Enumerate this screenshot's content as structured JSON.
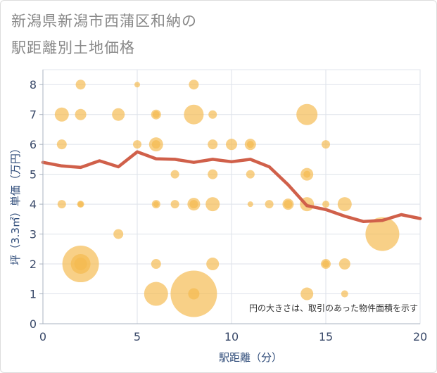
{
  "chart_data": {
    "type": "scatter",
    "title_line1": "新潟県新潟市西蒲区和納の",
    "title_line2": "駅距離別土地価格",
    "xlabel": "駅距離（分）",
    "ylabel": "坪（3.3㎡）単価（万円）",
    "note": "円の大きさは、取引のあった物件面積を示す",
    "xlim": [
      0,
      20
    ],
    "ylim": [
      0,
      8.5
    ],
    "xticks": [
      0,
      5,
      10,
      15,
      20
    ],
    "yticks": [
      0,
      1,
      2,
      3,
      4,
      5,
      6,
      7,
      8
    ],
    "grid": true,
    "bubble_color": "#f5b94e",
    "line_color": "#d0604a",
    "bubbles": [
      {
        "x": 2,
        "y": 8,
        "r": 7
      },
      {
        "x": 5,
        "y": 8,
        "r": 4
      },
      {
        "x": 8,
        "y": 8,
        "r": 7
      },
      {
        "x": 1,
        "y": 7,
        "r": 10
      },
      {
        "x": 2,
        "y": 7,
        "r": 8
      },
      {
        "x": 4,
        "y": 7,
        "r": 9
      },
      {
        "x": 6,
        "y": 7,
        "r": 7
      },
      {
        "x": 6,
        "y": 7,
        "r": 5
      },
      {
        "x": 8,
        "y": 7,
        "r": 14
      },
      {
        "x": 9,
        "y": 7,
        "r": 6
      },
      {
        "x": 14,
        "y": 7,
        "r": 15
      },
      {
        "x": 1,
        "y": 6,
        "r": 7
      },
      {
        "x": 5,
        "y": 6,
        "r": 6
      },
      {
        "x": 6,
        "y": 6,
        "r": 10
      },
      {
        "x": 6,
        "y": 6,
        "r": 6
      },
      {
        "x": 9,
        "y": 6,
        "r": 7
      },
      {
        "x": 10,
        "y": 6,
        "r": 8
      },
      {
        "x": 11,
        "y": 6,
        "r": 8
      },
      {
        "x": 11,
        "y": 6,
        "r": 5
      },
      {
        "x": 15,
        "y": 6,
        "r": 6
      },
      {
        "x": 7,
        "y": 5,
        "r": 6
      },
      {
        "x": 9,
        "y": 5,
        "r": 7
      },
      {
        "x": 11,
        "y": 5,
        "r": 6
      },
      {
        "x": 14,
        "y": 5,
        "r": 9
      },
      {
        "x": 14,
        "y": 5,
        "r": 5
      },
      {
        "x": 1,
        "y": 4,
        "r": 6
      },
      {
        "x": 2,
        "y": 4,
        "r": 5
      },
      {
        "x": 2,
        "y": 4,
        "r": 4
      },
      {
        "x": 6,
        "y": 4,
        "r": 6
      },
      {
        "x": 6,
        "y": 4,
        "r": 4
      },
      {
        "x": 7,
        "y": 4,
        "r": 6
      },
      {
        "x": 8,
        "y": 4,
        "r": 9
      },
      {
        "x": 8,
        "y": 4,
        "r": 6
      },
      {
        "x": 9,
        "y": 4,
        "r": 10
      },
      {
        "x": 11,
        "y": 4,
        "r": 4
      },
      {
        "x": 12,
        "y": 4,
        "r": 6
      },
      {
        "x": 13,
        "y": 4,
        "r": 8
      },
      {
        "x": 13,
        "y": 4,
        "r": 6
      },
      {
        "x": 14,
        "y": 4,
        "r": 10
      },
      {
        "x": 15,
        "y": 4,
        "r": 5
      },
      {
        "x": 16,
        "y": 4,
        "r": 10
      },
      {
        "x": 4,
        "y": 3,
        "r": 7
      },
      {
        "x": 18,
        "y": 3,
        "r": 24
      },
      {
        "x": 2,
        "y": 2,
        "r": 26
      },
      {
        "x": 2,
        "y": 2,
        "r": 14
      },
      {
        "x": 2,
        "y": 2,
        "r": 9
      },
      {
        "x": 6,
        "y": 2,
        "r": 7
      },
      {
        "x": 9,
        "y": 2,
        "r": 9
      },
      {
        "x": 15,
        "y": 2,
        "r": 7
      },
      {
        "x": 15,
        "y": 2,
        "r": 5
      },
      {
        "x": 16,
        "y": 2,
        "r": 8
      },
      {
        "x": 6,
        "y": 1,
        "r": 17
      },
      {
        "x": 8,
        "y": 1,
        "r": 33
      },
      {
        "x": 8,
        "y": 1,
        "r": 8
      },
      {
        "x": 14,
        "y": 1,
        "r": 9
      },
      {
        "x": 16,
        "y": 1,
        "r": 5
      }
    ],
    "series": [
      {
        "x": [
          0,
          1,
          2,
          3,
          4,
          5,
          6,
          7,
          8,
          9,
          10,
          11,
          12,
          13,
          14,
          15,
          16,
          17,
          18,
          19,
          20
        ],
        "values": [
          5.4,
          5.28,
          5.23,
          5.45,
          5.25,
          5.75,
          5.52,
          5.5,
          5.4,
          5.5,
          5.42,
          5.5,
          5.25,
          4.65,
          3.95,
          3.82,
          3.6,
          3.42,
          3.46,
          3.65,
          3.52
        ]
      }
    ]
  }
}
